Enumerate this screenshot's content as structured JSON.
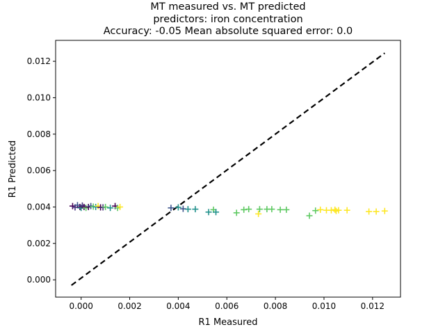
{
  "chart_data": {
    "type": "scatter",
    "title_lines": [
      "MT measured vs. MT predicted",
      "predictors: iron concentration",
      "Accuracy: -0.05 Mean absolute squared error: 0.0"
    ],
    "xlabel": "R1 Measured",
    "ylabel": "R1 Predicted",
    "xlim": [
      -0.00105,
      0.01315
    ],
    "ylim": [
      -0.00095,
      0.01315
    ],
    "xticks": [
      0.0,
      0.002,
      0.004,
      0.006,
      0.008,
      0.01,
      0.012
    ],
    "xtick_labels": [
      "0.000",
      "0.002",
      "0.004",
      "0.006",
      "0.008",
      "0.010",
      "0.012"
    ],
    "yticks": [
      0.0,
      0.002,
      0.004,
      0.006,
      0.008,
      0.01,
      0.012
    ],
    "ytick_labels": [
      "0.000",
      "0.002",
      "0.004",
      "0.006",
      "0.008",
      "0.010",
      "0.012"
    ],
    "grid": false,
    "marker": "+",
    "colormap": "viridis",
    "identity_line": {
      "x": [
        -0.0004,
        0.0125
      ],
      "y": [
        -0.0003,
        0.01245
      ],
      "color": "#000000",
      "style": "dashed"
    },
    "points": [
      {
        "x": -0.00035,
        "y": 0.00405,
        "color": "#440154"
      },
      {
        "x": -0.00025,
        "y": 0.00398,
        "color": "#46327e"
      },
      {
        "x": -0.00015,
        "y": 0.0041,
        "color": "#3b528b"
      },
      {
        "x": -5e-05,
        "y": 0.004,
        "color": "#440154"
      },
      {
        "x": 0.0,
        "y": 0.00395,
        "color": "#21918c"
      },
      {
        "x": 5e-05,
        "y": 0.00408,
        "color": "#46327e"
      },
      {
        "x": 0.00012,
        "y": 0.004,
        "color": "#440154"
      },
      {
        "x": 0.0002,
        "y": 0.00395,
        "color": "#5ec962"
      },
      {
        "x": 0.0003,
        "y": 0.004,
        "color": "#440154"
      },
      {
        "x": 0.0004,
        "y": 0.00405,
        "color": "#3b528b"
      },
      {
        "x": 0.0005,
        "y": 0.00402,
        "color": "#5ec962"
      },
      {
        "x": 0.0006,
        "y": 0.004,
        "color": "#21918c"
      },
      {
        "x": 0.0007,
        "y": 0.00405,
        "color": "#fde725"
      },
      {
        "x": 0.0008,
        "y": 0.00398,
        "color": "#440154"
      },
      {
        "x": 0.0009,
        "y": 0.00398,
        "color": "#46327e"
      },
      {
        "x": 0.001,
        "y": 0.004,
        "color": "#5ec962"
      },
      {
        "x": 0.0012,
        "y": 0.00395,
        "color": "#21918c"
      },
      {
        "x": 0.0014,
        "y": 0.00405,
        "color": "#440154"
      },
      {
        "x": 0.0015,
        "y": 0.00395,
        "color": "#5ec962"
      },
      {
        "x": 0.0016,
        "y": 0.004,
        "color": "#fde725"
      },
      {
        "x": 0.0037,
        "y": 0.00395,
        "color": "#3b528b"
      },
      {
        "x": 0.004,
        "y": 0.00398,
        "color": "#21918c"
      },
      {
        "x": 0.0042,
        "y": 0.0039,
        "color": "#3b528b"
      },
      {
        "x": 0.0044,
        "y": 0.00388,
        "color": "#21918c"
      },
      {
        "x": 0.0047,
        "y": 0.00388,
        "color": "#21918c"
      },
      {
        "x": 0.00525,
        "y": 0.00372,
        "color": "#21918c"
      },
      {
        "x": 0.00545,
        "y": 0.00385,
        "color": "#5ec962"
      },
      {
        "x": 0.00555,
        "y": 0.00372,
        "color": "#21918c"
      },
      {
        "x": 0.0064,
        "y": 0.00368,
        "color": "#5ec962"
      },
      {
        "x": 0.0067,
        "y": 0.00385,
        "color": "#5ec962"
      },
      {
        "x": 0.0069,
        "y": 0.00388,
        "color": "#5ec962"
      },
      {
        "x": 0.0073,
        "y": 0.00362,
        "color": "#fde725"
      },
      {
        "x": 0.00735,
        "y": 0.00388,
        "color": "#5ec962"
      },
      {
        "x": 0.00765,
        "y": 0.00388,
        "color": "#5ec962"
      },
      {
        "x": 0.00785,
        "y": 0.00388,
        "color": "#5ec962"
      },
      {
        "x": 0.0082,
        "y": 0.00385,
        "color": "#5ec962"
      },
      {
        "x": 0.00845,
        "y": 0.00385,
        "color": "#5ec962"
      },
      {
        "x": 0.0094,
        "y": 0.00352,
        "color": "#5ec962"
      },
      {
        "x": 0.00965,
        "y": 0.0038,
        "color": "#5ec962"
      },
      {
        "x": 0.00985,
        "y": 0.00385,
        "color": "#fde725"
      },
      {
        "x": 0.0101,
        "y": 0.00382,
        "color": "#fde725"
      },
      {
        "x": 0.0103,
        "y": 0.00382,
        "color": "#fde725"
      },
      {
        "x": 0.01045,
        "y": 0.00385,
        "color": "#fde725"
      },
      {
        "x": 0.0105,
        "y": 0.00378,
        "color": "#fde725"
      },
      {
        "x": 0.0106,
        "y": 0.00382,
        "color": "#fde725"
      },
      {
        "x": 0.01095,
        "y": 0.00382,
        "color": "#fde725"
      },
      {
        "x": 0.01185,
        "y": 0.00375,
        "color": "#fde725"
      },
      {
        "x": 0.01215,
        "y": 0.00375,
        "color": "#fde725"
      },
      {
        "x": 0.0125,
        "y": 0.00378,
        "color": "#fde725"
      }
    ]
  }
}
